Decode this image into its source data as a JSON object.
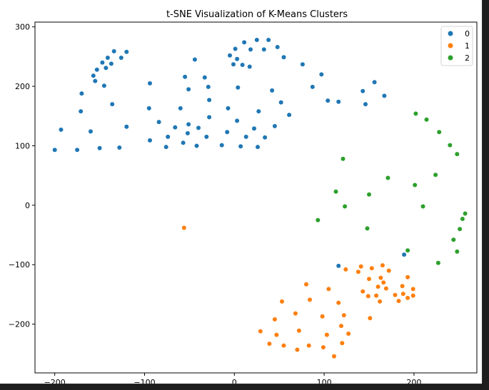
{
  "chart_data": {
    "type": "scatter",
    "title": "t-SNE Visualization of K-Means Clusters",
    "xlabel": "",
    "ylabel": "",
    "xlim": [
      -222,
      270
    ],
    "ylim": [
      -282,
      308
    ],
    "xticks": [
      -200,
      -100,
      0,
      100,
      200
    ],
    "yticks": [
      -200,
      -100,
      0,
      100,
      200,
      300
    ],
    "grid": false,
    "legend_position": "top-right",
    "series": [
      {
        "name": "0",
        "color": "#1f77b4",
        "points": [
          [
            -200,
            93
          ],
          [
            -193,
            127
          ],
          [
            -175,
            93
          ],
          [
            -171,
            158
          ],
          [
            -170,
            188
          ],
          [
            -160,
            124
          ],
          [
            -157,
            218
          ],
          [
            -155,
            209
          ],
          [
            -153,
            228
          ],
          [
            -150,
            96
          ],
          [
            -147,
            240
          ],
          [
            -145,
            201
          ],
          [
            -143,
            231
          ],
          [
            -141,
            248
          ],
          [
            -137,
            238
          ],
          [
            -136,
            170
          ],
          [
            -134,
            259
          ],
          [
            -128,
            97
          ],
          [
            -126,
            248
          ],
          [
            -120,
            258
          ],
          [
            -120,
            132
          ],
          [
            -95,
            163
          ],
          [
            -94,
            205
          ],
          [
            -94,
            109
          ],
          [
            -84,
            140
          ],
          [
            -76,
            98
          ],
          [
            -74,
            115
          ],
          [
            -66,
            131
          ],
          [
            -60,
            163
          ],
          [
            -57,
            105
          ],
          [
            -55,
            216
          ],
          [
            -52,
            121
          ],
          [
            -51,
            195
          ],
          [
            -51,
            136
          ],
          [
            -44,
            245
          ],
          [
            -42,
            100
          ],
          [
            -40,
            130
          ],
          [
            -33,
            215
          ],
          [
            -31,
            115
          ],
          [
            -29,
            199
          ],
          [
            -28,
            148
          ],
          [
            -28,
            177
          ],
          [
            -14,
            101
          ],
          [
            -8,
            123
          ],
          [
            -7,
            163
          ],
          [
            -5,
            252
          ],
          [
            -1,
            237
          ],
          [
            1,
            263
          ],
          [
            3,
            246
          ],
          [
            3,
            142
          ],
          [
            4,
            198
          ],
          [
            7,
            99
          ],
          [
            9,
            236
          ],
          [
            11,
            274
          ],
          [
            13,
            115
          ],
          [
            17,
            233
          ],
          [
            18,
            262
          ],
          [
            22,
            129
          ],
          [
            25,
            278
          ],
          [
            26,
            98
          ],
          [
            27,
            158
          ],
          [
            33,
            262
          ],
          [
            34,
            114
          ],
          [
            38,
            278
          ],
          [
            42,
            193
          ],
          [
            45,
            133
          ],
          [
            48,
            266
          ],
          [
            52,
            173
          ],
          [
            55,
            249
          ],
          [
            61,
            152
          ],
          [
            76,
            237
          ],
          [
            87,
            199
          ],
          [
            97,
            220
          ],
          [
            104,
            176
          ],
          [
            116,
            174
          ],
          [
            143,
            192
          ],
          [
            146,
            170
          ],
          [
            156,
            207
          ],
          [
            167,
            184
          ],
          [
            189,
            -83
          ],
          [
            116,
            -102
          ]
        ]
      },
      {
        "name": "1",
        "color": "#ff7f0e",
        "points": [
          [
            -56,
            -38
          ],
          [
            29,
            -212
          ],
          [
            39,
            -233
          ],
          [
            45,
            -192
          ],
          [
            47,
            -218
          ],
          [
            53,
            -162
          ],
          [
            55,
            -236
          ],
          [
            68,
            -182
          ],
          [
            70,
            -243
          ],
          [
            72,
            -211
          ],
          [
            80,
            -133
          ],
          [
            83,
            -236
          ],
          [
            84,
            -159
          ],
          [
            98,
            -187
          ],
          [
            99,
            -239
          ],
          [
            103,
            -218
          ],
          [
            105,
            -141
          ],
          [
            111,
            -254
          ],
          [
            116,
            -164
          ],
          [
            119,
            -203
          ],
          [
            120,
            -232
          ],
          [
            122,
            -185
          ],
          [
            124,
            -108
          ],
          [
            127,
            -216
          ],
          [
            138,
            -112
          ],
          [
            141,
            -103
          ],
          [
            143,
            -145
          ],
          [
            149,
            -153
          ],
          [
            150,
            -124
          ],
          [
            151,
            -190
          ],
          [
            153,
            -106
          ],
          [
            158,
            -152
          ],
          [
            160,
            -137
          ],
          [
            162,
            -162
          ],
          [
            163,
            -122
          ],
          [
            165,
            -101
          ],
          [
            166,
            -130
          ],
          [
            169,
            -140
          ],
          [
            172,
            -110
          ],
          [
            179,
            -151
          ],
          [
            183,
            -161
          ],
          [
            187,
            -136
          ],
          [
            188,
            -149
          ],
          [
            193,
            -156
          ],
          [
            193,
            -121
          ],
          [
            199,
            -141
          ],
          [
            199,
            -152
          ]
        ]
      },
      {
        "name": "2",
        "color": "#2ca02c",
        "points": [
          [
            202,
            154
          ],
          [
            214,
            144
          ],
          [
            228,
            123
          ],
          [
            240,
            101
          ],
          [
            248,
            86
          ],
          [
            121,
            78
          ],
          [
            171,
            46
          ],
          [
            224,
            51
          ],
          [
            201,
            34
          ],
          [
            113,
            23
          ],
          [
            150,
            18
          ],
          [
            123,
            -2
          ],
          [
            210,
            -2
          ],
          [
            93,
            -25
          ],
          [
            148,
            -39
          ],
          [
            257,
            -14
          ],
          [
            254,
            -23
          ],
          [
            251,
            -40
          ],
          [
            244,
            -58
          ],
          [
            248,
            -78
          ],
          [
            193,
            -76
          ],
          [
            227,
            -97
          ]
        ]
      }
    ]
  }
}
